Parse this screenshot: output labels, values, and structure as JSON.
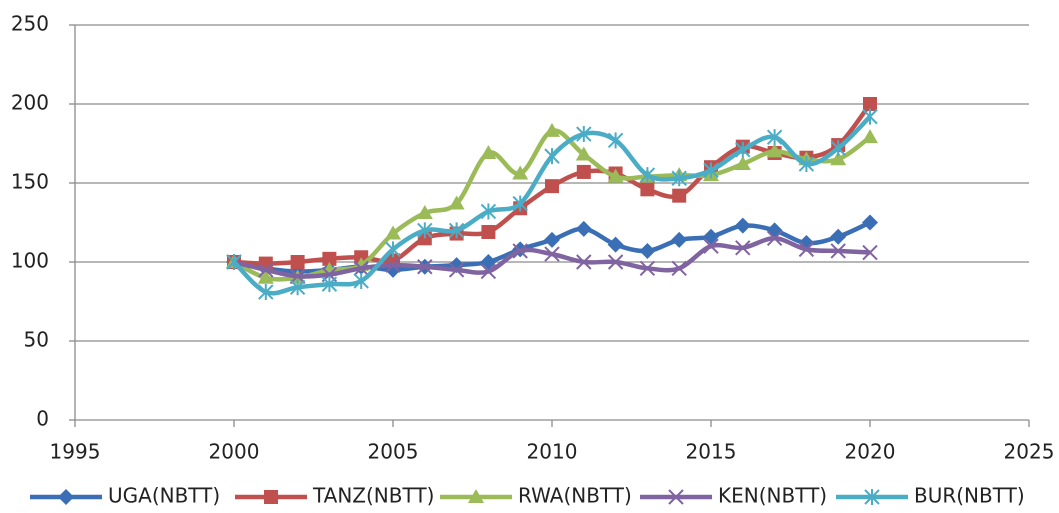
{
  "chart_data": {
    "type": "line",
    "x": [
      2000,
      2001,
      2002,
      2003,
      2004,
      2005,
      2006,
      2007,
      2008,
      2009,
      2010,
      2011,
      2012,
      2013,
      2014,
      2015,
      2016,
      2017,
      2018,
      2019,
      2020
    ],
    "series": [
      {
        "name": "UGA(NBTT)",
        "color": "#3a6fb5",
        "marker": "diamond",
        "values": [
          100,
          96,
          94,
          95,
          97,
          95,
          97,
          98,
          100,
          108,
          114,
          121,
          111,
          107,
          114,
          116,
          123,
          120,
          112,
          116,
          125
        ]
      },
      {
        "name": "TANZ(NBTT)",
        "color": "#c0504d",
        "marker": "square",
        "values": [
          100,
          99,
          100,
          102,
          103,
          101,
          115,
          118,
          119,
          134,
          148,
          157,
          156,
          146,
          142,
          160,
          173,
          169,
          166,
          174,
          200
        ]
      },
      {
        "name": "RWA(NBTT)",
        "color": "#9bbb59",
        "marker": "triangle",
        "values": [
          100,
          90,
          90,
          95,
          98,
          118,
          131,
          137,
          169,
          156,
          183,
          168,
          154,
          154,
          155,
          155,
          162,
          170,
          165,
          165,
          179
        ]
      },
      {
        "name": "KEN(NBTT)",
        "color": "#8064a2",
        "marker": "x",
        "values": [
          100,
          95,
          91,
          92,
          96,
          98,
          97,
          95,
          94,
          107,
          105,
          100,
          100,
          96,
          96,
          110,
          109,
          115,
          108,
          107,
          106
        ]
      },
      {
        "name": "BUR(NBTT)",
        "color": "#4bacc6",
        "marker": "star",
        "values": [
          100,
          81,
          84,
          86,
          88,
          108,
          120,
          120,
          132,
          137,
          167,
          181,
          177,
          155,
          153,
          158,
          171,
          179,
          162,
          172,
          192
        ]
      }
    ],
    "xlim": [
      1995,
      2025
    ],
    "xticks": [
      1995,
      2000,
      2005,
      2010,
      2015,
      2020,
      2025
    ],
    "ylim": [
      0,
      250
    ],
    "yticks": [
      0,
      50,
      100,
      150,
      200,
      250
    ],
    "grid": true,
    "smooth": true,
    "legend": "bottom"
  }
}
